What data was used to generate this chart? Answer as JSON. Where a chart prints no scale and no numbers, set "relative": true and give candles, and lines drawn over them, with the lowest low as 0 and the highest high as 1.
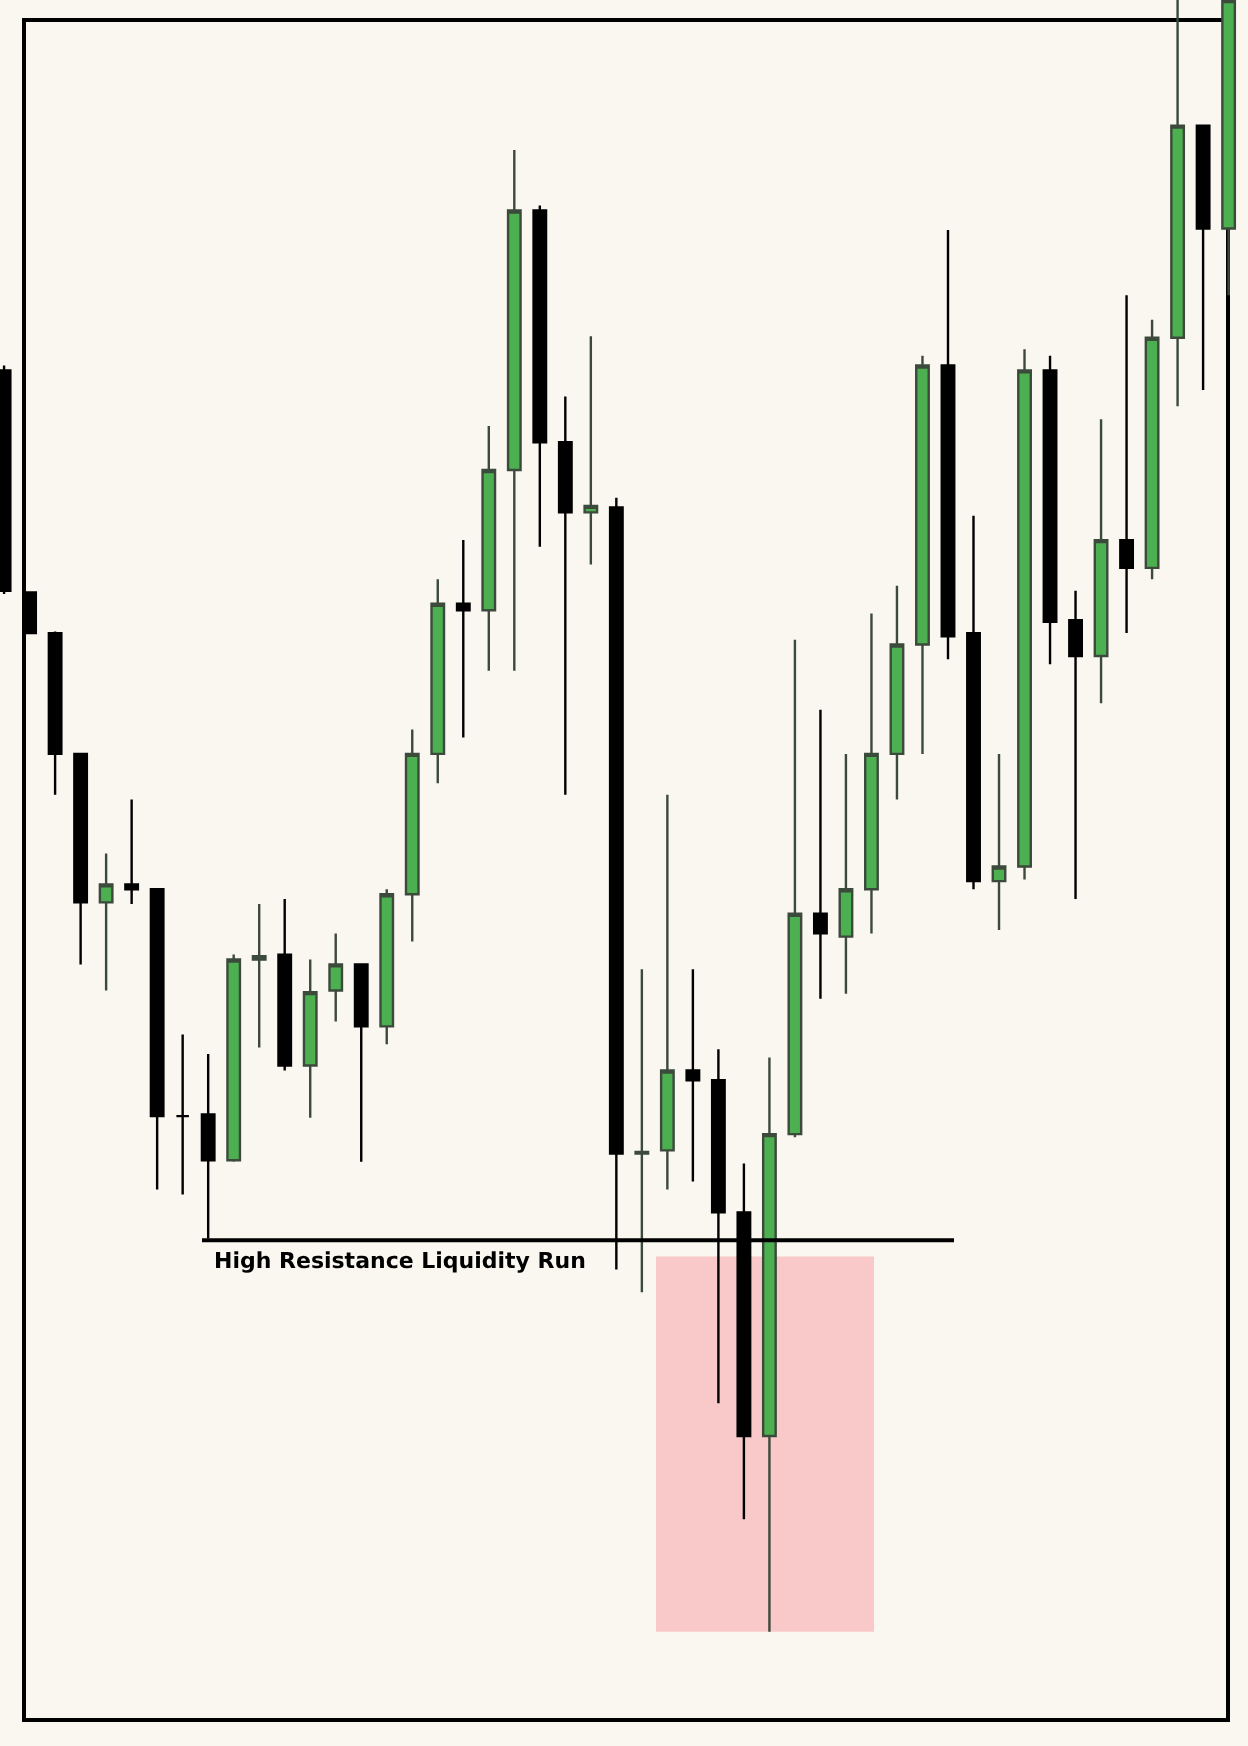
{
  "chart_data": {
    "type": "candlestick",
    "relative": true,
    "categories": [
      null,
      null,
      null,
      null,
      null,
      null,
      null,
      null,
      null,
      null,
      null,
      null,
      null,
      null,
      null,
      null,
      null,
      null,
      null,
      null,
      null,
      null,
      null,
      null,
      null,
      null,
      null,
      null,
      null,
      null,
      null,
      null,
      null,
      null,
      null,
      null,
      null,
      null,
      null,
      null,
      null,
      null,
      null,
      null,
      null,
      null,
      null,
      null,
      null
    ],
    "ohlc": [
      [
        0.773,
        0.776,
        0.636,
        0.638
      ],
      [
        0.637,
        0.637,
        0.612,
        0.612
      ],
      [
        0.612,
        0.613,
        0.513,
        0.538
      ],
      [
        0.538,
        0.538,
        0.409,
        0.447
      ],
      [
        0.447,
        0.477,
        0.393,
        0.458
      ],
      [
        0.458,
        0.51,
        0.446,
        0.455
      ],
      [
        0.455,
        0.455,
        0.271,
        0.316
      ],
      [
        0.316,
        0.366,
        0.268,
        0.316
      ],
      [
        0.317,
        0.354,
        0.241,
        0.289
      ],
      [
        0.289,
        0.415,
        0.288,
        0.412
      ],
      [
        0.412,
        0.446,
        0.358,
        0.414
      ],
      [
        0.415,
        0.449,
        0.344,
        0.347
      ],
      [
        0.347,
        0.412,
        0.315,
        0.392
      ],
      [
        0.393,
        0.428,
        0.374,
        0.409
      ],
      [
        0.409,
        0.409,
        0.288,
        0.371
      ],
      [
        0.371,
        0.455,
        0.36,
        0.452
      ],
      [
        0.452,
        0.553,
        0.423,
        0.538
      ],
      [
        0.538,
        0.645,
        0.52,
        0.63
      ],
      [
        0.63,
        0.669,
        0.548,
        0.626
      ],
      [
        0.626,
        0.739,
        0.589,
        0.712
      ],
      [
        0.712,
        0.908,
        0.589,
        0.871
      ],
      [
        0.871,
        0.874,
        0.665,
        0.729
      ],
      [
        0.729,
        0.757,
        0.513,
        0.686
      ],
      [
        0.686,
        0.794,
        0.654,
        0.69
      ],
      [
        0.689,
        0.695,
        0.222,
        0.293
      ],
      [
        0.293,
        0.406,
        0.208,
        0.294
      ],
      [
        0.295,
        0.513,
        0.271,
        0.344
      ],
      [
        0.344,
        0.406,
        0.276,
        0.338
      ],
      [
        0.338,
        0.357,
        0.14,
        0.257
      ],
      [
        0.257,
        0.287,
        0.069,
        0.12
      ],
      [
        0.12,
        0.352,
        0,
        0.305
      ],
      [
        0.305,
        0.608,
        0.303,
        0.44
      ],
      [
        0.44,
        0.565,
        0.388,
        0.428
      ],
      [
        0.426,
        0.538,
        0.391,
        0.455
      ],
      [
        0.455,
        0.624,
        0.428,
        0.538
      ],
      [
        0.538,
        0.641,
        0.51,
        0.605
      ],
      [
        0.605,
        0.782,
        0.538,
        0.776
      ],
      [
        0.776,
        0.859,
        0.596,
        0.61
      ],
      [
        0.612,
        0.684,
        0.455,
        0.46
      ],
      [
        0.46,
        0.538,
        0.43,
        0.469
      ],
      [
        0.469,
        0.786,
        0.461,
        0.773
      ],
      [
        0.773,
        0.782,
        0.593,
        0.619
      ],
      [
        0.62,
        0.638,
        0.449,
        0.598
      ],
      [
        0.598,
        0.743,
        0.569,
        0.669
      ],
      [
        0.669,
        0.819,
        0.612,
        0.652
      ],
      [
        0.652,
        0.804,
        0.645,
        0.793
      ],
      [
        0.793,
        1,
        0.751,
        0.923
      ],
      [
        0.923,
        0.923,
        0.761,
        0.86
      ],
      [
        0.86,
        1,
        0.819,
        1
      ]
    ],
    "ref_lines": [
      {
        "axis": "y",
        "value": 0.24,
        "label": "High Resistance Liquidity Run",
        "color": "#000000"
      }
    ],
    "bands": [
      {
        "axis": "y",
        "from": 0,
        "to": 0.23,
        "color": "#f9c9c9"
      }
    ],
    "grid": false,
    "legend": false
  }
}
